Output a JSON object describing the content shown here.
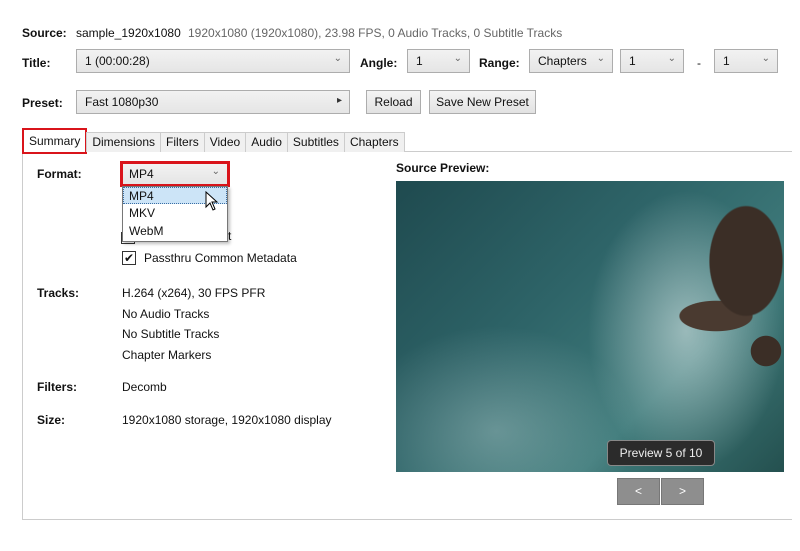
{
  "source": {
    "label": "Source:",
    "name": "sample_1920x1080",
    "info": "1920x1080 (1920x1080), 23.98 FPS, 0 Audio Tracks, 0 Subtitle Tracks"
  },
  "title": {
    "label": "Title:",
    "value": "1  (00:00:28)"
  },
  "angle": {
    "label": "Angle:",
    "value": "1"
  },
  "range": {
    "label": "Range:",
    "type": "Chapters",
    "start": "1",
    "sep": "-",
    "end": "1"
  },
  "preset": {
    "label": "Preset:",
    "value": "Fast 1080p30",
    "reload": "Reload",
    "save_new": "Save New Preset"
  },
  "tabs": [
    "Summary",
    "Dimensions",
    "Filters",
    "Video",
    "Audio",
    "Subtitles",
    "Chapters"
  ],
  "summary": {
    "format_label": "Format:",
    "format_value": "MP4",
    "format_options": [
      "MP4",
      "MKV",
      "WebM"
    ],
    "hidden_checkbox_tail": "t",
    "passthru_label": "Passthru Common Metadata",
    "passthru_checked": true,
    "tracks_label": "Tracks:",
    "tracks": [
      "H.264 (x264), 30 FPS PFR",
      "No Audio Tracks",
      "No Subtitle Tracks",
      "Chapter Markers"
    ],
    "filters_label": "Filters:",
    "filters": "Decomb",
    "size_label": "Size:",
    "size": "1920x1080 storage, 1920x1080 display"
  },
  "preview": {
    "label": "Source Preview:",
    "counter": "Preview 5 of 10",
    "prev": "<",
    "next": ">"
  },
  "colors": {
    "highlight": "#d9141b",
    "selected_option": "#cce4f7"
  }
}
